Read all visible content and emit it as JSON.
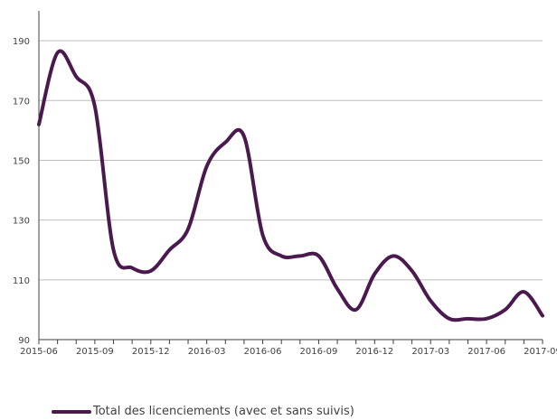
{
  "chart_data": {
    "type": "line",
    "title": "",
    "xlabel": "",
    "ylabel": "",
    "ylim": [
      90,
      200
    ],
    "yticks": [
      90,
      110,
      130,
      150,
      170,
      190
    ],
    "xticks": [
      "2015-06",
      "2015-09",
      "2015-12",
      "2016-03",
      "2016-06",
      "2016-09",
      "2016-12",
      "2017-03",
      "2017-06",
      "2017-09"
    ],
    "grid": "horizontal",
    "legend_position": "bottom-left",
    "series": [
      {
        "name": "Total des licenciements (avec et sans suivis)",
        "color": "#4a1a4f",
        "x": [
          "2015-06",
          "2015-07",
          "2015-08",
          "2015-09",
          "2015-10",
          "2015-11",
          "2015-12",
          "2016-01",
          "2016-02",
          "2016-03",
          "2016-04",
          "2016-05",
          "2016-06",
          "2016-07",
          "2016-08",
          "2016-09",
          "2016-10",
          "2016-11",
          "2016-12",
          "2017-01",
          "2017-02",
          "2017-03",
          "2017-04",
          "2017-05",
          "2017-06",
          "2017-07",
          "2017-08",
          "2017-09"
        ],
        "values": [
          162,
          186,
          178,
          168,
          120,
          114,
          113,
          120,
          127,
          148,
          156,
          158,
          125,
          118,
          118,
          118,
          107,
          100,
          112,
          118,
          113,
          103,
          97,
          97,
          97,
          100,
          106,
          98
        ]
      }
    ]
  }
}
